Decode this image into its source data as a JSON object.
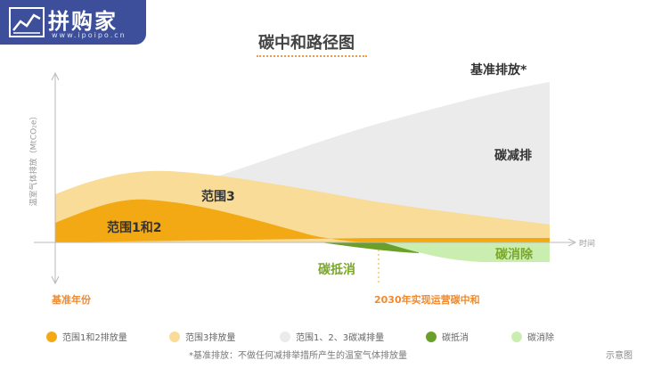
{
  "logo": {
    "name": "拼购家",
    "domain": "www.ipoipo.cn"
  },
  "title": "碳中和路径图",
  "axis": {
    "y_label": "温室气体排放（MtCO₂e）",
    "x_label": "时间",
    "baseline_label": "基准年份",
    "target_label": "2030年实现运营碳中和"
  },
  "areas": {
    "baseline": "基准排放*",
    "reduction": "碳减排",
    "scope3": "范围3",
    "scope12": "范围1和2",
    "offset": "碳抵消",
    "removal": "碳消除"
  },
  "legend": [
    {
      "label": "范围1和2排放量",
      "color": "#f3a914"
    },
    {
      "label": "范围3排放量",
      "color": "#f8dc97"
    },
    {
      "label": "范围1、2、3碳减排量",
      "color": "#ebebeb"
    },
    {
      "label": "碳抵消",
      "color": "#6aa02a"
    },
    {
      "label": "碳消除",
      "color": "#c9eeb0"
    }
  ],
  "footnote": "*基准排放：不做任何减排举措所产生的温室气体排放量",
  "schematic_label": "示意图",
  "colors": {
    "orange": "#f3a914",
    "light_orange": "#f8dc97",
    "grey": "#ebebeb",
    "green": "#6aa02a",
    "light_green": "#c9eeb0",
    "accent_text": "#f08a2e",
    "green_text": "#7aa82a"
  }
}
